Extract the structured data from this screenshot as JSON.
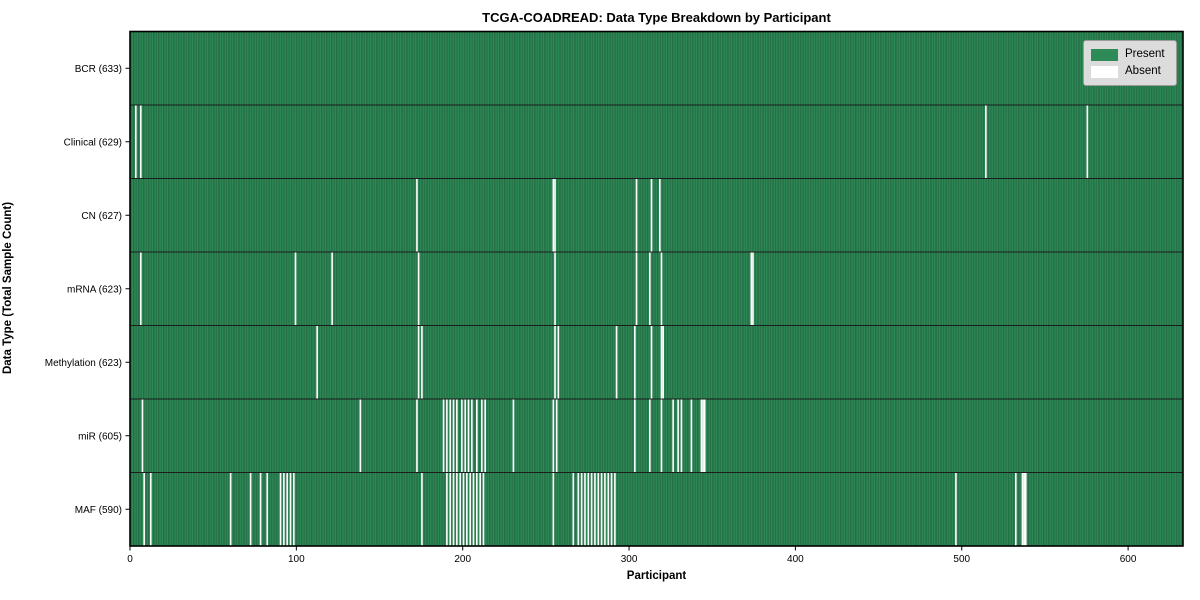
{
  "chart_data": {
    "type": "heatmap",
    "title": "TCGA-COADREAD: Data Type Breakdown by Participant",
    "xlabel": "Participant",
    "ylabel": "Data Type (Total Sample Count)",
    "n_participants": 633,
    "x_ticks": [
      0,
      100,
      200,
      300,
      400,
      500,
      600
    ],
    "grid": false,
    "legend_position": "upper right",
    "colors": {
      "present": "#2e8b57",
      "present_cell_edge": "#1e5e3c",
      "absent": "#ffffff",
      "row_divider": "#1c1c1c",
      "axis": "#000000",
      "legend_bg": "#dcdcdc",
      "legend_border": "#9a9a9a"
    },
    "legend": [
      {
        "label": "Present",
        "color": "#2e8b57"
      },
      {
        "label": "Absent",
        "color": "#ffffff"
      }
    ],
    "rows": [
      {
        "label": "BCR (633)",
        "present_count": 633,
        "absent_count": 0,
        "absent_indices": []
      },
      {
        "label": "Clinical (629)",
        "present_count": 629,
        "absent_count": 4,
        "absent_indices": [
          3,
          6,
          514,
          575
        ]
      },
      {
        "label": "CN (627)",
        "present_count": 627,
        "absent_count": 6,
        "absent_indices": [
          172,
          254,
          255,
          304,
          313,
          318
        ]
      },
      {
        "label": "mRNA (623)",
        "present_count": 623,
        "absent_count": 10,
        "absent_indices": [
          6,
          99,
          121,
          173,
          255,
          304,
          312,
          319,
          373,
          374
        ]
      },
      {
        "label": "Methylation (623)",
        "present_count": 623,
        "absent_count": 10,
        "absent_indices": [
          112,
          173,
          175,
          255,
          257,
          292,
          303,
          313,
          319,
          320
        ]
      },
      {
        "label": "miR (605)",
        "present_count": 605,
        "absent_count": 28,
        "absent_indices": [
          7,
          138,
          172,
          188,
          190,
          192,
          194,
          196,
          199,
          201,
          203,
          205,
          208,
          211,
          213,
          230,
          254,
          256,
          303,
          312,
          319,
          326,
          329,
          331,
          337,
          343,
          344,
          345
        ]
      },
      {
        "label": "MAF (590)",
        "present_count": 590,
        "absent_count": 43,
        "absent_indices": [
          8,
          12,
          60,
          72,
          78,
          82,
          90,
          92,
          94,
          96,
          98,
          175,
          190,
          192,
          194,
          196,
          198,
          200,
          202,
          204,
          206,
          208,
          210,
          212,
          254,
          266,
          269,
          271,
          273,
          275,
          277,
          279,
          281,
          283,
          285,
          287,
          289,
          291,
          496,
          532,
          536,
          537,
          538
        ]
      }
    ]
  }
}
